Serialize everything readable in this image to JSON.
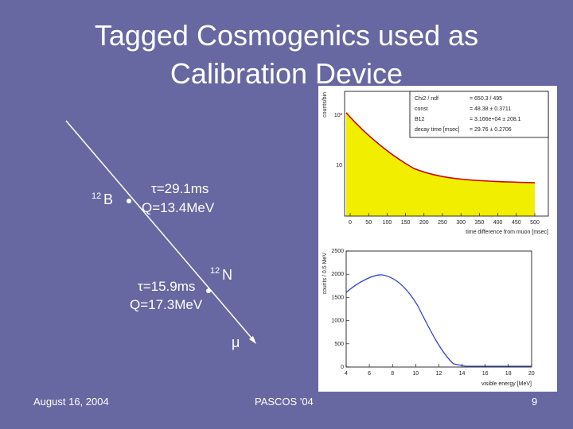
{
  "title": [
    "Tagged Cosmogenics used as",
    "Calibration Device"
  ],
  "diagram": {
    "b12": {
      "mass": "12",
      "symbol": "B",
      "tau": "τ=29.1ms",
      "q": "Q=13.4MeV"
    },
    "n12": {
      "mass": "12",
      "symbol": "N",
      "tau": "τ=15.9ms",
      "q": "Q=17.3MeV"
    },
    "muon": "μ"
  },
  "top_plot": {
    "stats": [
      [
        "Chi2 / ndf",
        "= 650.3 / 495"
      ],
      [
        "const",
        "= 48.38 ± 0.3711"
      ],
      [
        "B12",
        "= 3.166e+04 ± 208.1"
      ],
      [
        "decay time [msec]",
        "= 29.76 ± 0.2706"
      ]
    ],
    "ylabel": "counts/bin",
    "yticks": [
      "10²",
      "10"
    ],
    "xticks": [
      "0",
      "50",
      "100",
      "150",
      "200",
      "250",
      "300",
      "350",
      "400",
      "450",
      "500"
    ],
    "xlabel": "time difference from muon [msec]"
  },
  "bottom_plot": {
    "ylabel": "counts / 0.5 MeV",
    "yticks": [
      "0",
      "500",
      "1000",
      "1500",
      "2000",
      "2500"
    ],
    "xticks": [
      "4",
      "6",
      "8",
      "10",
      "12",
      "14",
      "16",
      "18",
      "20"
    ],
    "xlabel": "visible energy [MeV]"
  },
  "footer": {
    "date": "August 16, 2004",
    "event": "PASCOS '04",
    "page": "9"
  }
}
